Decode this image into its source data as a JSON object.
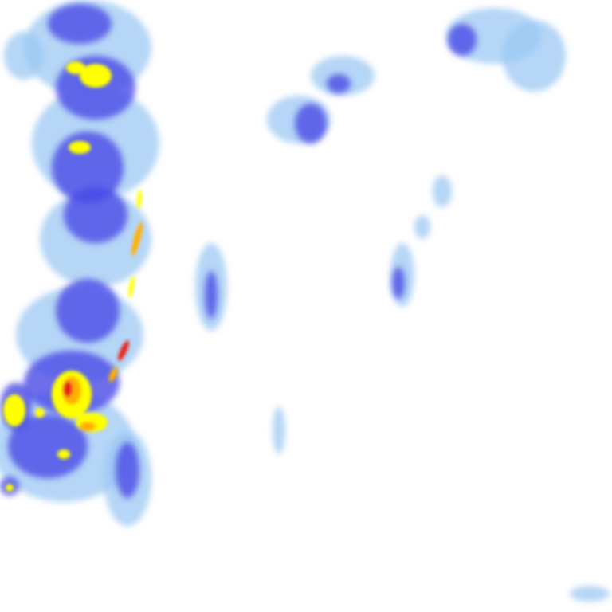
{
  "map": {
    "type": "precipitation-radar-tile",
    "background": "#ffffff",
    "palette": {
      "very_light": "#cfe4fb",
      "light": "#9cc8f3",
      "moderate": "#4a4ae6",
      "strong": "#2020c8",
      "heavy": "#ffff00",
      "very_heavy": "#ffb000",
      "intense": "#e8231a"
    }
  }
}
